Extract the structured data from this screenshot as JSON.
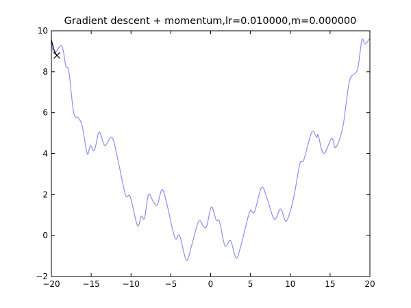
{
  "chart_data": {
    "type": "line",
    "title": "Gradient descent + momentum,lr=0.010000,m=0.000000",
    "xlim": [
      -20,
      20
    ],
    "ylim": [
      -2,
      10
    ],
    "xticks": [
      {
        "value": -20,
        "label": "−20"
      },
      {
        "value": -15,
        "label": "−15"
      },
      {
        "value": -10,
        "label": "−10"
      },
      {
        "value": -5,
        "label": "−5"
      },
      0,
      5,
      10,
      15,
      20
    ],
    "yticks": [
      {
        "value": -2,
        "label": "−2"
      },
      0,
      2,
      4,
      6,
      8,
      10
    ],
    "grid": false,
    "series": [
      {
        "color": "#8c8cf0",
        "x": [
          -20,
          -19.7,
          -18.7,
          -18.2,
          -17.8,
          -17.2,
          -16.6,
          -16.1,
          -15.5,
          -15.1,
          -14.6,
          -14.0,
          -13.3,
          -12.4,
          -11.7,
          -10.7,
          -10.1,
          -9.2,
          -8.7,
          -8.3,
          -7.8,
          -7.2,
          -6.7,
          -6.1,
          -5.5,
          -4.5,
          -3.9,
          -3.05,
          -2.4,
          -1.5,
          -0.9,
          -0.5,
          0.1,
          0.7,
          1.1,
          1.8,
          2.5,
          3.2,
          3.8,
          4.9,
          5.5,
          6.4,
          7.1,
          8.0,
          8.8,
          9.5,
          10.4,
          11.2,
          11.7,
          12.7,
          13.3,
          13.5,
          14.2,
          15.2,
          15.7,
          16.6,
          17.4,
          18.1,
          18.5,
          19.0,
          19.4,
          20.0
        ],
        "values": [
          9.65,
          8.9,
          9.26,
          8.3,
          8.0,
          6.0,
          5.75,
          5.3,
          4.0,
          4.4,
          4.15,
          5.05,
          4.4,
          4.8,
          3.8,
          2.0,
          1.9,
          0.5,
          0.95,
          0.85,
          2.0,
          1.65,
          1.5,
          2.25,
          1.55,
          -0.1,
          0.0,
          -1.2,
          -0.5,
          0.7,
          0.45,
          0.45,
          1.4,
          0.75,
          0.7,
          -0.5,
          -0.25,
          -1.1,
          -0.5,
          1.15,
          1.15,
          2.35,
          1.8,
          0.8,
          1.3,
          0.7,
          1.8,
          3.5,
          3.7,
          5.05,
          4.8,
          4.9,
          4.0,
          4.75,
          4.3,
          5.3,
          7.5,
          7.9,
          8.2,
          9.55,
          9.35,
          9.65
        ]
      },
      {
        "color": "#000000",
        "end_marker": "x",
        "x": [
          -20,
          -19.6,
          -19.3
        ],
        "values": [
          9.55,
          9.0,
          8.8
        ]
      }
    ]
  }
}
